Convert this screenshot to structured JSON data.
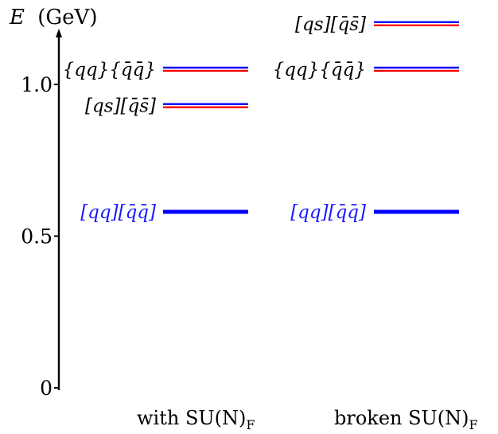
{
  "axis": {
    "title_var": "E",
    "title_unit": "(GeV)",
    "ticks": [
      {
        "value": 0,
        "label": "0"
      },
      {
        "value": 0.5,
        "label": "0.5"
      },
      {
        "value": 1.0,
        "label": "1.0"
      }
    ],
    "range": [
      0,
      1.2
    ]
  },
  "columns": [
    {
      "label_main": "with SU(N)",
      "label_sub": "F"
    },
    {
      "label_main": "broken SU(N)",
      "label_sub": "F"
    }
  ],
  "levels": [
    {
      "column": 0,
      "energy": 1.05,
      "label": "{qq}{q̄q̄}",
      "style": "pair",
      "label_color": "#000000"
    },
    {
      "column": 0,
      "energy": 0.93,
      "label": "[qs][q̄s̄]",
      "style": "pair",
      "label_color": "#000000"
    },
    {
      "column": 0,
      "energy": 0.58,
      "label": "[qq][q̄q̄]",
      "style": "thick",
      "label_color": "#1a1aff"
    },
    {
      "column": 1,
      "energy": 1.2,
      "label": "[qs][q̄s̄]",
      "style": "pair",
      "label_color": "#000000"
    },
    {
      "column": 1,
      "energy": 1.05,
      "label": "{qq}{q̄q̄}",
      "style": "pair",
      "label_color": "#000000"
    },
    {
      "column": 1,
      "energy": 0.58,
      "label": "[qq][q̄q̄]",
      "style": "thick",
      "label_color": "#1a1aff"
    }
  ],
  "colors": {
    "blue": "#0000ff",
    "red": "#ff0000",
    "axis": "#000000"
  }
}
